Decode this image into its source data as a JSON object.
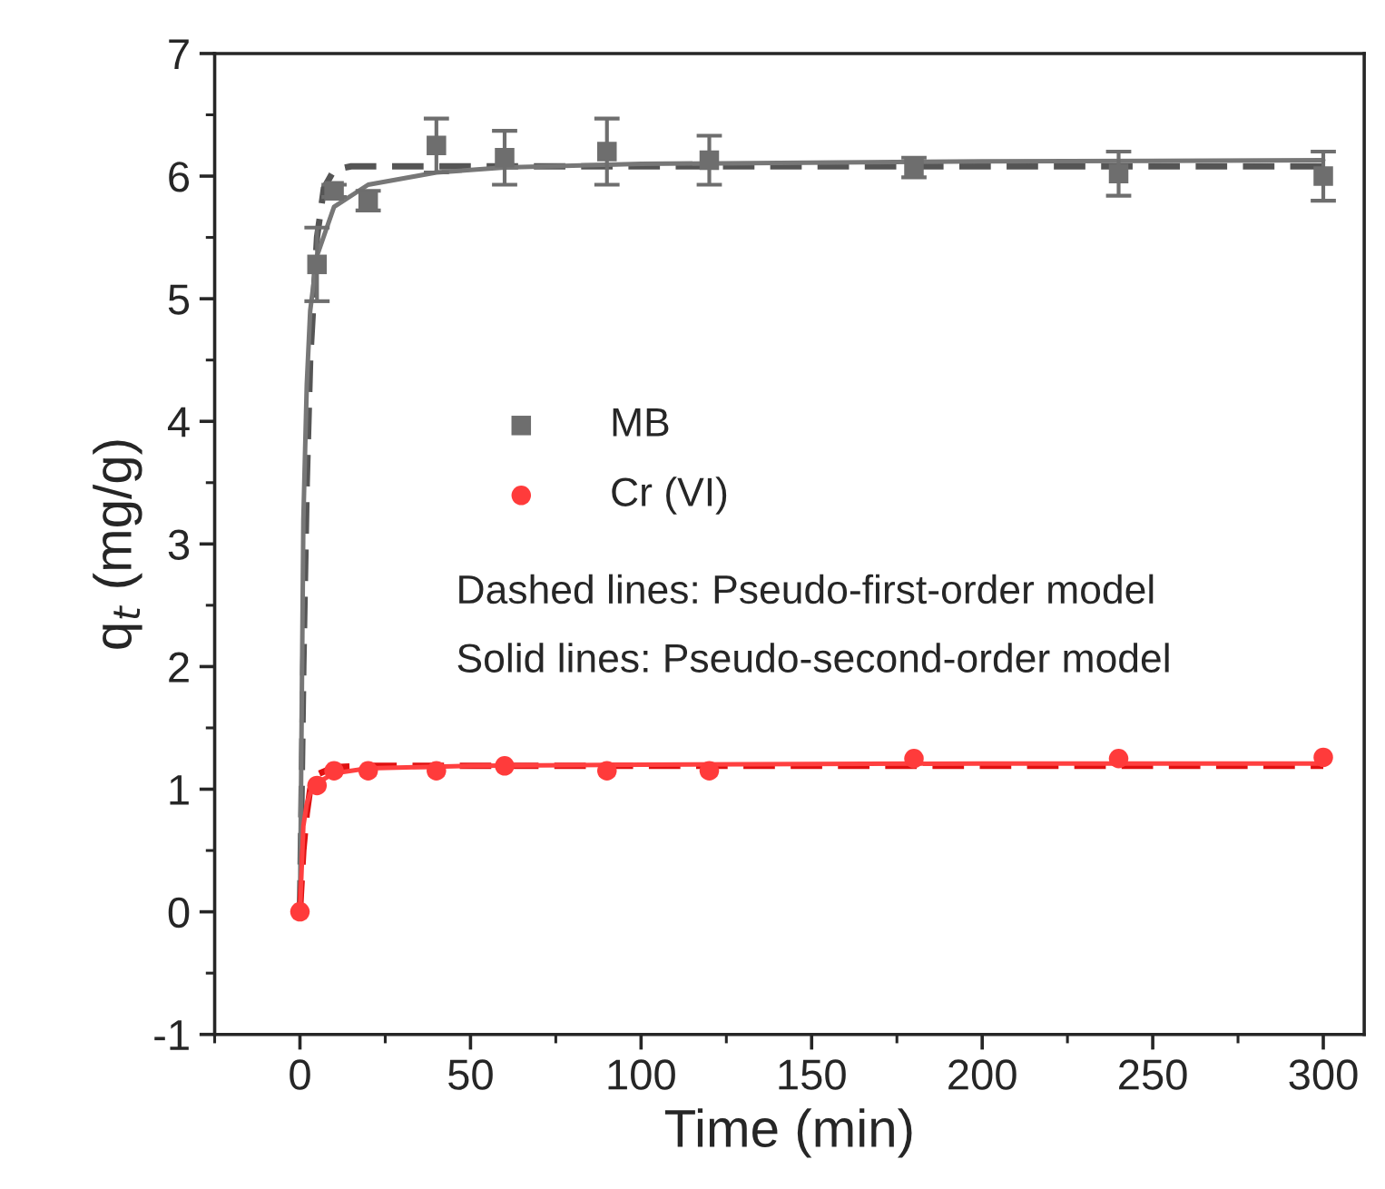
{
  "chart_data": {
    "type": "scatter",
    "xlabel": "Time (min)",
    "ylabel": "q$_{t}$ (mg/g)",
    "xlim": [
      -25,
      312
    ],
    "ylim": [
      -1,
      7
    ],
    "xticks": [
      0,
      50,
      100,
      150,
      200,
      250,
      300
    ],
    "yticks": [
      -1,
      0,
      1,
      2,
      3,
      4,
      5,
      6,
      7
    ],
    "grid": false,
    "legend": "center left",
    "annotations": [
      "Dashed lines: Pseudo-first-order model",
      "Solid lines: Pseudo-second-order model"
    ],
    "series": [
      {
        "name": "MB",
        "marker": "square",
        "color": "#6e6e6e",
        "x": [
          5,
          10,
          20,
          40,
          60,
          90,
          120,
          180,
          240,
          300
        ],
        "values": [
          5.28,
          5.88,
          5.8,
          6.25,
          6.15,
          6.2,
          6.13,
          6.07,
          6.02,
          6.0
        ],
        "errors": [
          0.3,
          0.05,
          0.08,
          0.22,
          0.22,
          0.27,
          0.2,
          0.08,
          0.18,
          0.2
        ]
      },
      {
        "name": "Cr (VI)",
        "marker": "circle",
        "color": "#ff3b3b",
        "x": [
          0,
          5,
          10,
          20,
          40,
          60,
          90,
          120,
          180,
          240,
          300
        ],
        "values": [
          0,
          1.03,
          1.15,
          1.15,
          1.15,
          1.19,
          1.15,
          1.15,
          1.25,
          1.25,
          1.26
        ]
      },
      {
        "type": "line",
        "line_style": "dashed",
        "color": "#555555",
        "x": [
          0,
          1,
          2,
          3,
          5,
          7,
          10,
          15,
          20,
          50,
          100,
          200,
          300
        ],
        "values": [
          0,
          2.0,
          3.5,
          4.5,
          5.5,
          5.9,
          6.05,
          6.08,
          6.08,
          6.08,
          6.08,
          6.08,
          6.08
        ]
      },
      {
        "type": "line",
        "line_style": "solid",
        "color": "#777777",
        "x": [
          0,
          1,
          2,
          3,
          5,
          10,
          20,
          40,
          60,
          100,
          200,
          300
        ],
        "values": [
          0,
          3.2,
          4.3,
          4.9,
          5.35,
          5.75,
          5.93,
          6.03,
          6.07,
          6.1,
          6.12,
          6.13
        ]
      },
      {
        "type": "line",
        "line_style": "dashed",
        "color": "#e01010",
        "x": [
          0,
          1,
          2,
          3,
          5,
          10,
          20,
          50,
          100,
          200,
          300
        ],
        "values": [
          0,
          0.5,
          0.8,
          1.0,
          1.12,
          1.18,
          1.19,
          1.19,
          1.19,
          1.19,
          1.19
        ]
      },
      {
        "type": "line",
        "line_style": "solid",
        "color": "#ff4040",
        "x": [
          0,
          1,
          2,
          3,
          5,
          10,
          20,
          50,
          100,
          200,
          300
        ],
        "values": [
          0,
          0.7,
          0.88,
          0.97,
          1.05,
          1.13,
          1.17,
          1.19,
          1.2,
          1.21,
          1.21
        ]
      }
    ]
  }
}
